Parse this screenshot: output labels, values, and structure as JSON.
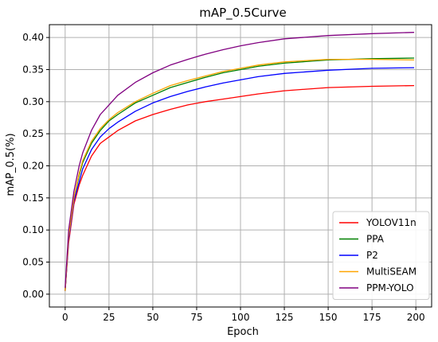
{
  "chart_data": {
    "type": "line",
    "title": "mAP_0.5Curve",
    "xlabel": "Epoch",
    "ylabel": "mAP_0.5(%)",
    "xlim": [
      -9,
      209
    ],
    "ylim": [
      -0.02,
      0.42
    ],
    "grid": true,
    "legend_position": "bottom-right",
    "xticks": [
      0,
      25,
      50,
      75,
      100,
      125,
      150,
      175,
      200
    ],
    "yticks": [
      0.0,
      0.05,
      0.1,
      0.15,
      0.2,
      0.25,
      0.3,
      0.35,
      0.4
    ],
    "series": [
      {
        "name": "YOLOV11n",
        "color": "#ff0000",
        "x": [
          0,
          2,
          5,
          8,
          10,
          15,
          20,
          25,
          30,
          40,
          50,
          60,
          70,
          80,
          90,
          100,
          110,
          125,
          150,
          175,
          199
        ],
        "y": [
          0.005,
          0.08,
          0.14,
          0.17,
          0.185,
          0.215,
          0.235,
          0.245,
          0.255,
          0.27,
          0.28,
          0.288,
          0.295,
          0.3,
          0.304,
          0.308,
          0.312,
          0.317,
          0.322,
          0.324,
          0.325
        ]
      },
      {
        "name": "PPA",
        "color": "#008000",
        "x": [
          0,
          2,
          5,
          8,
          10,
          15,
          20,
          25,
          30,
          40,
          50,
          60,
          70,
          80,
          90,
          100,
          110,
          125,
          150,
          175,
          199
        ],
        "y": [
          0.005,
          0.09,
          0.15,
          0.185,
          0.205,
          0.235,
          0.255,
          0.27,
          0.28,
          0.298,
          0.31,
          0.322,
          0.33,
          0.338,
          0.345,
          0.35,
          0.355,
          0.36,
          0.365,
          0.367,
          0.368
        ]
      },
      {
        "name": "P2",
        "color": "#0000ff",
        "x": [
          0,
          2,
          5,
          8,
          10,
          15,
          20,
          25,
          30,
          40,
          50,
          60,
          70,
          80,
          90,
          100,
          110,
          125,
          150,
          175,
          199
        ],
        "y": [
          0.005,
          0.085,
          0.145,
          0.175,
          0.195,
          0.225,
          0.245,
          0.258,
          0.268,
          0.285,
          0.298,
          0.308,
          0.316,
          0.323,
          0.329,
          0.334,
          0.339,
          0.344,
          0.349,
          0.352,
          0.353
        ]
      },
      {
        "name": "MultiSEAM",
        "color": "#ffa500",
        "x": [
          0,
          2,
          5,
          8,
          10,
          15,
          20,
          25,
          30,
          40,
          50,
          60,
          70,
          80,
          90,
          100,
          110,
          125,
          150,
          175,
          199
        ],
        "y": [
          0.005,
          0.09,
          0.15,
          0.188,
          0.208,
          0.238,
          0.258,
          0.272,
          0.283,
          0.3,
          0.313,
          0.325,
          0.333,
          0.34,
          0.347,
          0.352,
          0.357,
          0.362,
          0.366,
          0.366,
          0.365
        ]
      },
      {
        "name": "PPM-YOLO",
        "color": "#800080",
        "x": [
          0,
          2,
          5,
          8,
          10,
          15,
          20,
          25,
          30,
          40,
          50,
          60,
          70,
          80,
          90,
          100,
          110,
          125,
          150,
          175,
          199
        ],
        "y": [
          0.01,
          0.1,
          0.16,
          0.2,
          0.22,
          0.255,
          0.28,
          0.295,
          0.31,
          0.33,
          0.345,
          0.357,
          0.366,
          0.374,
          0.381,
          0.387,
          0.392,
          0.398,
          0.403,
          0.406,
          0.408
        ]
      }
    ]
  }
}
